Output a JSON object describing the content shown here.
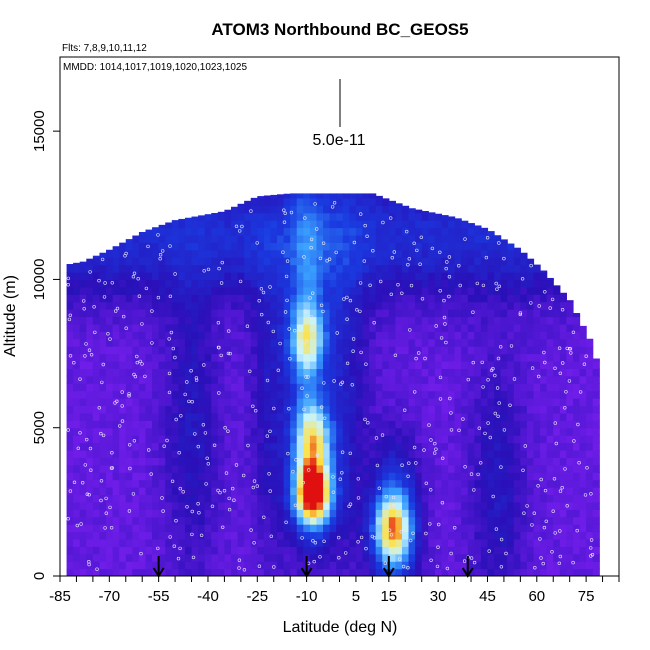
{
  "chart_data": {
    "type": "heatmap",
    "title": "ATOM3 Northbound BC_GEOS5",
    "flights_label": "Flts: 7,8,9,10,11,12",
    "dates_label": "MMDD: 1014,1017,1019,1020,1023,1025",
    "xlabel": "Latitude (deg N)",
    "ylabel": "Altitude (m)",
    "xlim": [
      -85,
      85
    ],
    "ylim": [
      0,
      17500
    ],
    "x_ticks": [
      -85,
      -70,
      -55,
      -40,
      -25,
      -10,
      5,
      15,
      30,
      45,
      60,
      75
    ],
    "y_ticks": [
      0,
      5000,
      10000,
      15000
    ],
    "scale_bar_label": "5.0e-11",
    "colormap": [
      "#7a1ff0",
      "#2a10b8",
      "#1a3ae0",
      "#3aa0ff",
      "#c8f4ff",
      "#ffe040",
      "#e01010"
    ],
    "arrow_latitudes": [
      -55,
      -10,
      15,
      39
    ],
    "hotspots": [
      {
        "lat": -8,
        "alt": 2800,
        "level": 1.0
      },
      {
        "lat": 16,
        "alt": 1600,
        "level": 0.55
      },
      {
        "lat": -8,
        "alt": 4700,
        "level": 0.5
      },
      {
        "lat": -10,
        "alt": 8000,
        "level": 0.4
      }
    ]
  }
}
